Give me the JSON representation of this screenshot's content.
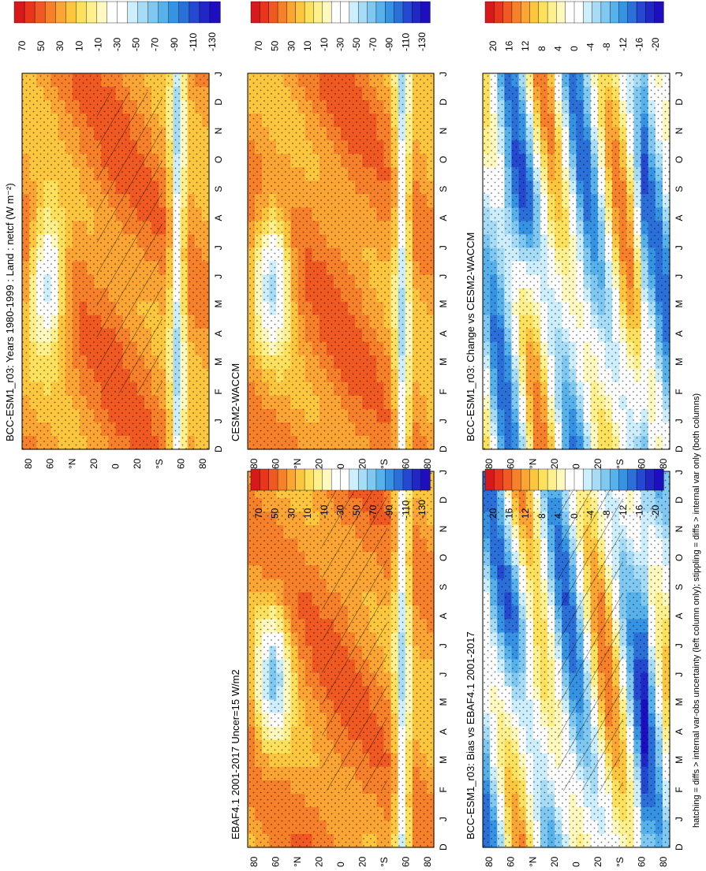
{
  "figure": {
    "footer": "hatching = diffs > internal var-obs uncertainty (left column only); stippling = diffs > internal var only (both columns)"
  },
  "chart_data": [
    {
      "type": "heatmap",
      "title": "BCC-ESM1_r03: Years 1980-1999 : Land : netcf (W m⁻²)",
      "x_ticks": [
        "D",
        "J",
        "F",
        "M",
        "A",
        "M",
        "J",
        "J",
        "A",
        "S",
        "O",
        "N",
        "D",
        "J"
      ],
      "y_ticks": [
        "80",
        "60",
        "°N",
        "20",
        "0",
        "20",
        "°S",
        "60",
        "80"
      ],
      "colorbar": [
        "70",
        "50",
        "30",
        "10",
        "-10",
        "-30",
        "-50",
        "-70",
        "-90",
        "-110",
        "-130"
      ],
      "hatching": true,
      "stippling": true
    },
    {
      "type": "heatmap",
      "title": "BCC-ESM1_r03: Years 1980-1999 : Land : netcf (W m⁻²)",
      "x_ticks": [
        "D",
        "J",
        "F",
        "M",
        "A",
        "M",
        "J",
        "J",
        "A",
        "S",
        "O",
        "N",
        "D",
        "J"
      ],
      "y_ticks": [
        "80",
        "60",
        "°N",
        "20",
        "0",
        "20",
        "°S",
        "60",
        "80"
      ],
      "colorbar": [
        "70",
        "50",
        "30",
        "10",
        "-10",
        "-30",
        "-50",
        "-70",
        "-90",
        "-110",
        "-130"
      ],
      "hatching": false,
      "stippling": true
    },
    {
      "type": "heatmap",
      "title": "EBAF4.1 2001-2017 Uncer=15 W/m2",
      "x_ticks": [
        "D",
        "J",
        "F",
        "M",
        "A",
        "M",
        "J",
        "J",
        "A",
        "S",
        "O",
        "N",
        "D",
        "J"
      ],
      "y_ticks": [
        "80",
        "60",
        "°N",
        "20",
        "0",
        "20",
        "°S",
        "60",
        "80"
      ],
      "colorbar": [
        "70",
        "50",
        "30",
        "10",
        "-10",
        "-30",
        "-50",
        "-70",
        "-90",
        "-110",
        "-130"
      ],
      "hatching": true,
      "stippling": true
    },
    {
      "type": "heatmap",
      "title": "CESM2-WACCM",
      "x_ticks": [
        "D",
        "J",
        "F",
        "M",
        "A",
        "M",
        "J",
        "J",
        "A",
        "S",
        "O",
        "N",
        "D",
        "J"
      ],
      "y_ticks": [
        "80",
        "60",
        "°N",
        "20",
        "0",
        "20",
        "°S",
        "60",
        "80"
      ],
      "colorbar": [
        "70",
        "50",
        "30",
        "10",
        "-10",
        "-30",
        "-50",
        "-70",
        "-90",
        "-110",
        "-130"
      ],
      "hatching": false,
      "stippling": true
    },
    {
      "type": "heatmap",
      "title": "BCC-ESM1_r03: Bias vs EBAF4.1 2001-2017",
      "x_ticks": [
        "D",
        "J",
        "F",
        "M",
        "A",
        "M",
        "J",
        "J",
        "A",
        "S",
        "O",
        "N",
        "D",
        "J"
      ],
      "y_ticks": [
        "80",
        "60",
        "°N",
        "20",
        "0",
        "20",
        "°S",
        "60",
        "80"
      ],
      "colorbar": [
        "20",
        "16",
        "12",
        "8",
        "4",
        "0",
        "-4",
        "-8",
        "-12",
        "-16",
        "-20"
      ],
      "hatching": true,
      "stippling": true
    },
    {
      "type": "heatmap",
      "title": "BCC-ESM1_r03: Change vs CESM2-WACCM",
      "x_ticks": [
        "D",
        "J",
        "F",
        "M",
        "A",
        "M",
        "J",
        "J",
        "A",
        "S",
        "O",
        "N",
        "D",
        "J"
      ],
      "y_ticks": [
        "80",
        "60",
        "°N",
        "20",
        "0",
        "20",
        "°S",
        "60",
        "80"
      ],
      "colorbar": [
        "20",
        "16",
        "12",
        "8",
        "4",
        "0",
        "-4",
        "-8",
        "-12",
        "-16",
        "-20"
      ],
      "hatching": false,
      "stippling": true
    }
  ],
  "palette": [
    "#d7191c",
    "#e8351c",
    "#f05a22",
    "#f7802a",
    "#fba535",
    "#fcc63f",
    "#fde05c",
    "#fef08c",
    "#fff9bf",
    "#ffffff",
    "#ffffff",
    "#cdeefc",
    "#a7dcf7",
    "#7fc8f2",
    "#57b2ec",
    "#3693e3",
    "#2a70d8",
    "#2448d0",
    "#2127c7",
    "#1d0fbf"
  ]
}
